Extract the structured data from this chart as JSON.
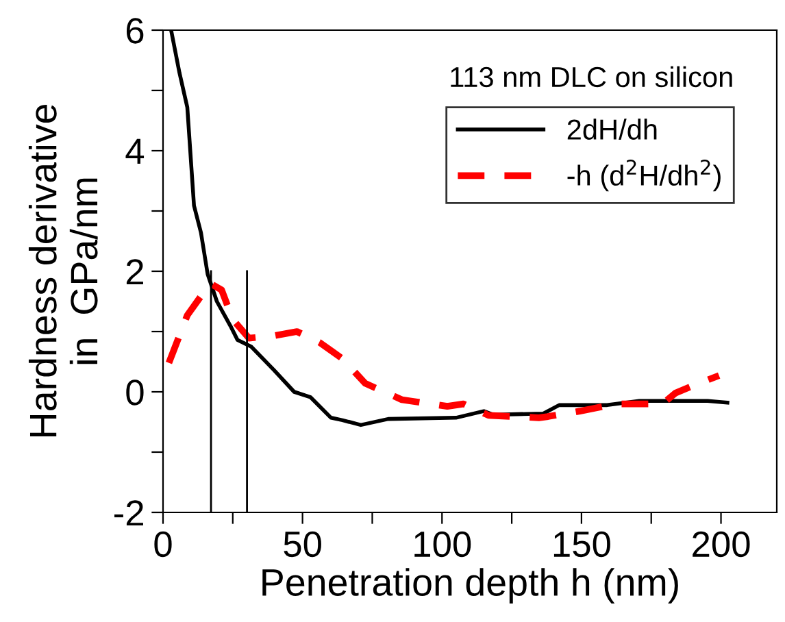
{
  "chart_data": {
    "type": "line",
    "xlabel": "Penetration depth h (nm)",
    "ylabel": "Hardness derivative\nin  GPa/nm",
    "annotations": [
      "113 nm DLC on silicon"
    ],
    "xlim": [
      0,
      220
    ],
    "ylim": [
      -2,
      6
    ],
    "xticks": [
      0,
      {
        "value": 25,
        "label": null
      },
      50,
      {
        "value": 75,
        "label": null
      },
      100,
      {
        "value": 125,
        "label": null
      },
      150,
      {
        "value": 175,
        "label": null
      },
      200
    ],
    "yticks": [
      -2,
      {
        "value": -1,
        "label": null
      },
      0,
      {
        "value": 1,
        "label": null
      },
      2,
      {
        "value": 3,
        "label": null
      },
      4,
      {
        "value": 5,
        "label": null
      },
      6
    ],
    "grid": false,
    "legend": "top right",
    "series": [
      {
        "name": "2dH/dh",
        "color": "#000000",
        "line_style": "solid",
        "x": [
          2.9,
          5.9,
          8.7,
          11.1,
          13.6,
          16,
          19.3,
          24.2,
          26.7,
          31.6,
          39.8,
          47,
          52.9,
          60.2,
          64.3,
          70.9,
          80.7,
          105,
          115,
          118.3,
          136.3,
          142,
          159.2,
          170.7,
          195.2,
          202.3
        ],
        "values": [
          6,
          5.29,
          4.72,
          3.09,
          2.64,
          1.95,
          1.5,
          1.09,
          0.86,
          0.75,
          0.36,
          0,
          -0.09,
          -0.43,
          -0.47,
          -0.55,
          -0.45,
          -0.43,
          -0.32,
          -0.38,
          -0.36,
          -0.22,
          -0.22,
          -0.15,
          -0.15,
          -0.18
        ]
      },
      {
        "name": "-h (d$^{2}$H/dh$^{2}$)",
        "color": "#ff0000",
        "line_style": "dashed",
        "x": [
          2.1,
          8.7,
          16.9,
          21,
          25,
          30.8,
          39.8,
          48,
          56.1,
          64.3,
          72.5,
          85.6,
          101.9,
          107.7,
          116.7,
          134.7,
          138,
          149.4,
          162.5,
          169,
          179,
          183.7,
          192,
          199.3
        ],
        "values": [
          0.48,
          1.27,
          1.8,
          1.69,
          1.2,
          0.89,
          0.93,
          1.0,
          0.82,
          0.55,
          0.14,
          -0.13,
          -0.24,
          -0.2,
          -0.39,
          -0.43,
          -0.41,
          -0.32,
          -0.2,
          -0.2,
          -0.2,
          -0.02,
          0.14,
          0.27
        ]
      },
      {
        "color": "#000000",
        "line_style": "solid",
        "x": [
          17.2,
          17.2
        ],
        "values": [
          -2,
          2
        ]
      },
      {
        "color": "#000000",
        "line_style": "solid",
        "x": [
          30.1,
          30.1
        ],
        "values": [
          -2,
          2
        ]
      }
    ]
  }
}
